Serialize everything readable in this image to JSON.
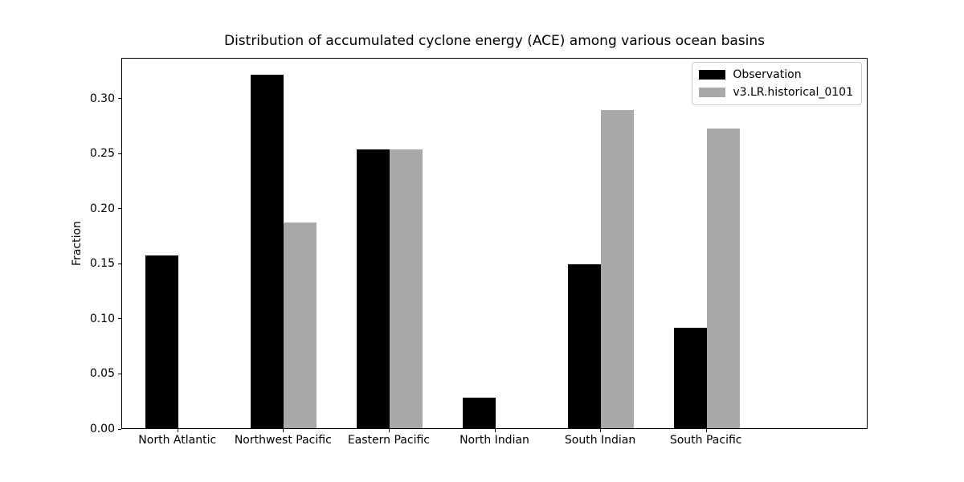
{
  "figure": {
    "background": "#ffffff"
  },
  "chart_data": {
    "type": "bar",
    "title": "Distribution of accumulated cyclone energy (ACE) among various ocean basins",
    "xlabel": "",
    "ylabel": "Fraction",
    "categories": [
      "North Atlantic",
      "Northwest Pacific",
      "Eastern Pacific",
      "North Indian",
      "South Indian",
      "South Pacific"
    ],
    "series": [
      {
        "name": "Observation",
        "color": "#000000",
        "values": [
          0.157,
          0.321,
          0.253,
          0.028,
          0.149,
          0.091
        ]
      },
      {
        "name": "v3.LR.historical_0101",
        "color": "#a9a9a9",
        "values": [
          0.0,
          0.187,
          0.253,
          0.0,
          0.289,
          0.272
        ]
      }
    ],
    "ylim": [
      0,
      0.337
    ],
    "yticks": [
      0.0,
      0.05,
      0.1,
      0.15,
      0.2,
      0.25,
      0.3
    ],
    "ytick_labels": [
      "0.00",
      "0.05",
      "0.10",
      "0.15",
      "0.20",
      "0.25",
      "0.30"
    ],
    "grid": false,
    "legend_position": "upper right",
    "bar_colors_note": "black = Observation, darkgray = v3.LR.historical_0101"
  }
}
